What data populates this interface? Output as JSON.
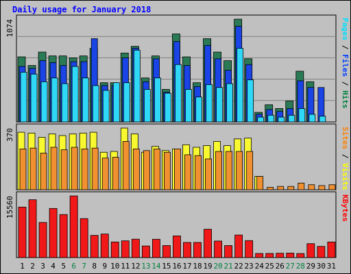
{
  "chart_data": {
    "type": "bar",
    "title": "Daily usage for January 2018",
    "categories": [
      "1",
      "2",
      "3",
      "4",
      "5",
      "6",
      "7",
      "8",
      "9",
      "10",
      "11",
      "12",
      "13",
      "14",
      "15",
      "16",
      "17",
      "18",
      "19",
      "20",
      "21",
      "22",
      "23",
      "24",
      "25",
      "26",
      "27",
      "28",
      "29",
      "30",
      "31"
    ],
    "weekend_days": [
      "6",
      "7",
      "13",
      "14",
      "20",
      "21",
      "27",
      "28"
    ],
    "panels": [
      {
        "id": "top",
        "max_label": "1074",
        "ymax": 1074,
        "right_label": [
          {
            "text": "Pages",
            "color": "#00e0ff"
          },
          {
            "text": " / ",
            "color": "#000000"
          },
          {
            "text": "Files",
            "color": "#0040ff"
          },
          {
            "text": " / ",
            "color": "#000000"
          },
          {
            "text": "Hits",
            "color": "#008040"
          }
        ],
        "series": [
          {
            "name": "Hits",
            "color": "#2a7a55",
            "values": [
              680,
              590,
              730,
              690,
              690,
              670,
              690,
              770,
              410,
              410,
              720,
              790,
              460,
              690,
              340,
              920,
              680,
              410,
              870,
              730,
              640,
              1074,
              660,
              100,
              180,
              140,
              220,
              530,
              420,
              0,
              0
            ]
          },
          {
            "name": "Files",
            "color": "#1a44e6",
            "values": [
              580,
              560,
              640,
              620,
              590,
              630,
              630,
              870,
              380,
              380,
              670,
              770,
              420,
              660,
              310,
              840,
              590,
              370,
              800,
              660,
              540,
              1000,
              600,
              80,
              130,
              110,
              140,
              430,
              360,
              360,
              0
            ]
          },
          {
            "name": "Pages",
            "color": "#30d8f8",
            "values": [
              520,
              500,
              420,
              460,
              400,
              580,
              460,
              380,
              330,
              410,
              410,
              750,
              340,
              460,
              300,
              600,
              340,
              260,
              390,
              360,
              400,
              770,
              440,
              50,
              70,
              50,
              70,
              140,
              80,
              60,
              0
            ]
          }
        ]
      },
      {
        "id": "middle",
        "max_label": "370",
        "ymax": 370,
        "right_label": [
          {
            "text": "Sites",
            "color": "#ff8000"
          },
          {
            "text": " / ",
            "color": "#000000"
          },
          {
            "text": "Visits",
            "color": "#ffff00"
          }
        ],
        "series": [
          {
            "name": "Visits",
            "color": "#f8f830",
            "values": [
              345,
              340,
              315,
              335,
              325,
              335,
              340,
              345,
              225,
              230,
              370,
              335,
              225,
              260,
              235,
              245,
              270,
              255,
              265,
              290,
              265,
              305,
              310,
              80,
              0,
              0,
              0,
              0,
              0,
              0,
              0
            ]
          },
          {
            "name": "Sites",
            "color": "#f09030",
            "values": [
              245,
              250,
              220,
              255,
              240,
              255,
              245,
              250,
              190,
              195,
              290,
              245,
              235,
              245,
              225,
              245,
              210,
              205,
              185,
              230,
              230,
              230,
              230,
              80,
              15,
              20,
              20,
              40,
              30,
              25,
              30
            ]
          }
        ]
      },
      {
        "id": "bottom",
        "max_label": "15560",
        "ymax": 15560,
        "right_label": [
          {
            "text": "KBytes",
            "color": "#ff0000"
          }
        ],
        "series": [
          {
            "name": "KBytes",
            "color": "#f01818",
            "values": [
              12740,
              14590,
              8860,
              12390,
              10860,
              15560,
              9830,
              5600,
              5940,
              3930,
              4220,
              4640,
              2920,
              4620,
              3030,
              5470,
              3810,
              3810,
              7150,
              4170,
              3030,
              5690,
              4280,
              1030,
              1040,
              1090,
              1130,
              1020,
              3510,
              2820,
              3940
            ]
          }
        ]
      }
    ]
  }
}
